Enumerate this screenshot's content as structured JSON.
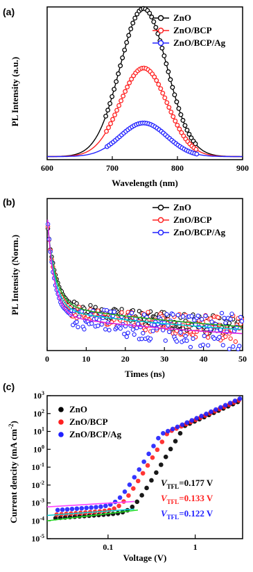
{
  "chart_data": [
    {
      "panel": "(a)",
      "type": "line",
      "xlabel": "Wavelength (nm)",
      "ylabel": "PL Intensity (a.u.)",
      "xlim": [
        600,
        900
      ],
      "ylim": [
        0,
        1.0
      ],
      "xticks": [
        "600",
        "700",
        "800",
        "900"
      ],
      "legend_position": "top-right",
      "series": [
        {
          "name": "ZnO",
          "color": "#000000",
          "peak_x": 748,
          "peak_y": 0.97,
          "width": 36,
          "baseline": 0.02
        },
        {
          "name": "ZnO/BCP",
          "color": "#ff2020",
          "peak_x": 748,
          "peak_y": 0.58,
          "width": 36,
          "baseline": 0.02
        },
        {
          "name": "ZnO/BCP/Ag",
          "color": "#2020ff",
          "peak_x": 748,
          "peak_y": 0.22,
          "width": 36,
          "baseline": 0.02
        }
      ]
    },
    {
      "panel": "(b)",
      "type": "scatter",
      "xlabel": "Times (ns)",
      "ylabel": "PL Intensity (Norm.)",
      "xlim": [
        0,
        50
      ],
      "ylim": [
        0,
        1.0
      ],
      "xticks": [
        "0",
        "10",
        "20",
        "30",
        "40",
        "50"
      ],
      "legend_position": "top-right",
      "series": [
        {
          "name": "ZnO",
          "color": "#000000",
          "fit_color": "#22aa22",
          "a1": 0.55,
          "t1": 2.2,
          "a2": 0.45,
          "t2": 60,
          "noise": 0.03
        },
        {
          "name": "ZnO/BCP",
          "color": "#ff2020",
          "fit_color": "#00cccc",
          "a1": 0.6,
          "t1": 2.0,
          "a2": 0.4,
          "t2": 55,
          "noise": 0.04
        },
        {
          "name": "ZnO/BCP/Ag",
          "color": "#2020ff",
          "fit_color": "#dd22dd",
          "a1": 0.66,
          "t1": 1.8,
          "a2": 0.34,
          "t2": 45,
          "noise": 0.06
        }
      ]
    },
    {
      "panel": "(c)",
      "type": "scatter",
      "xlabel": "Voltage (V)",
      "ylabel": "Current dencity (mA cm",
      "ylabel_sup": "-2",
      "ylabel_end": ")",
      "xscale": "log",
      "yscale": "log",
      "xlim": [
        0.02,
        3.5
      ],
      "ylim": [
        1e-05,
        1000
      ],
      "xticks": [
        {
          "v": 0.1,
          "label": "0.1"
        },
        {
          "v": 1,
          "label": "1"
        }
      ],
      "yticks": [
        {
          "exp": -5
        },
        {
          "exp": -4
        },
        {
          "exp": -3
        },
        {
          "exp": -2
        },
        {
          "exp": -1
        },
        {
          "exp": 0
        },
        {
          "exp": 1
        },
        {
          "exp": 2
        },
        {
          "exp": 3
        }
      ],
      "legend_position": "top-left",
      "series": [
        {
          "name": "ZnO",
          "color": "#000000",
          "vtfl": 0.177,
          "j0": 0.00018,
          "jmax": 520
        },
        {
          "name": "ZnO/BCP",
          "color": "#ff2020",
          "vtfl": 0.133,
          "j0": 0.00028,
          "jmax": 600
        },
        {
          "name": "ZnO/BCP/Ag",
          "color": "#2020ff",
          "vtfl": 0.122,
          "j0": 0.0005,
          "jmax": 700
        }
      ],
      "fit_lines": [
        {
          "color": "#22dd22",
          "from": [
            0.02,
            0.0001
          ],
          "to": [
            0.22,
            0.0004
          ]
        },
        {
          "color": "#00cccc",
          "from": [
            0.02,
            0.0002
          ],
          "to": [
            0.2,
            0.00045
          ]
        },
        {
          "color": "#ff44ff",
          "from": [
            0.02,
            0.0006
          ],
          "to": [
            0.2,
            0.0012
          ]
        }
      ],
      "annotations": [
        {
          "var": "V",
          "sub": "TFL",
          "value": "=0.177 V",
          "color": "#000000"
        },
        {
          "var": "V",
          "sub": "TFL",
          "value": "=0.133 V",
          "color": "#ff2020"
        },
        {
          "var": "V",
          "sub": "TFL",
          "value": "=0.122 V",
          "color": "#2020ff"
        }
      ]
    }
  ]
}
